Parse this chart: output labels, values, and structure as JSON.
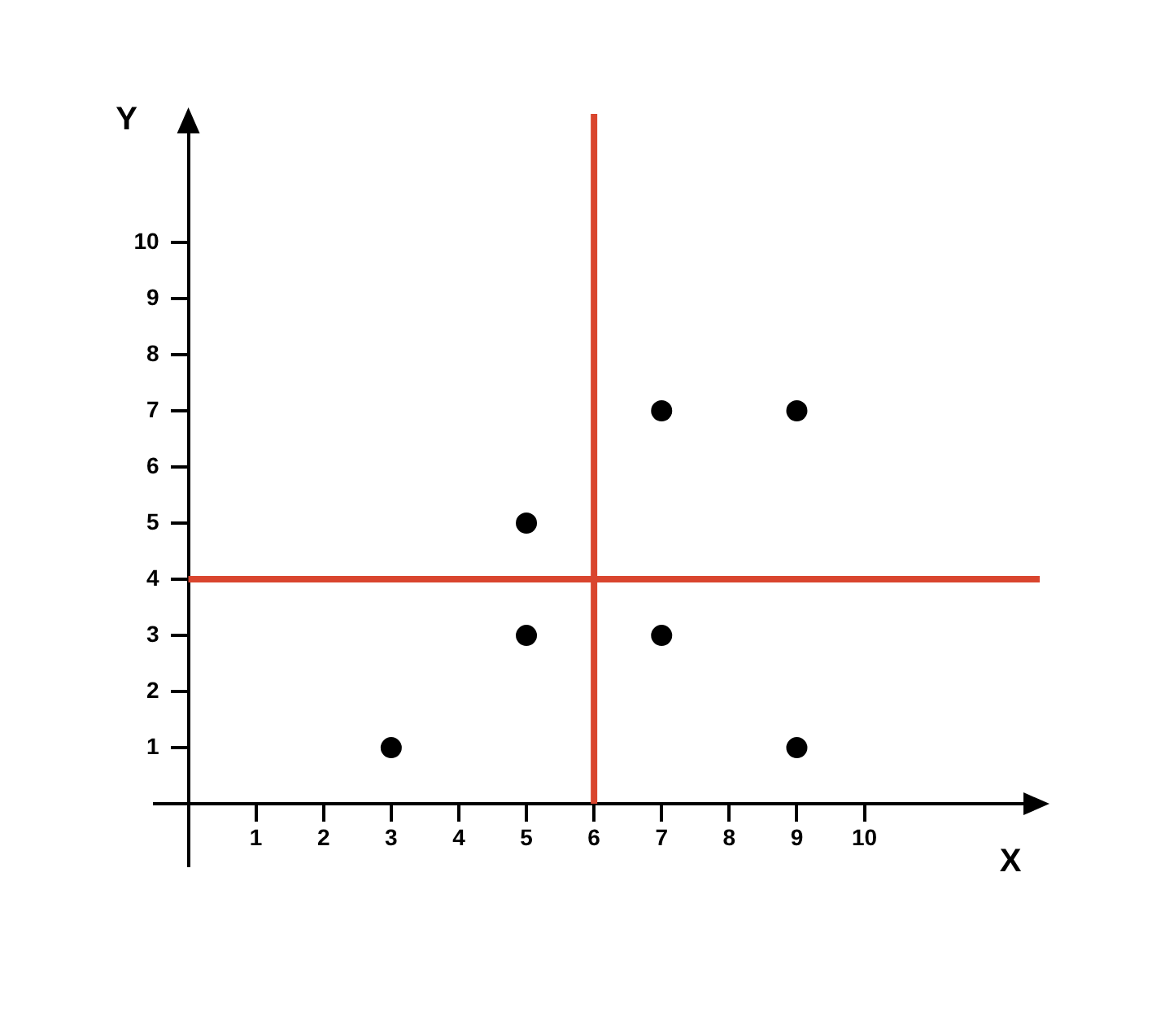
{
  "chart_data": {
    "type": "scatter",
    "x": [
      3,
      5,
      5,
      7,
      7,
      9,
      9
    ],
    "values": [
      1,
      3,
      5,
      3,
      7,
      7,
      1
    ],
    "color": "#000000",
    "xlabel": "X",
    "ylabel": "Y",
    "xlim": [
      -0.5,
      12.4
    ],
    "ylim": [
      -1.1,
      12
    ],
    "xticks": [
      1,
      2,
      3,
      4,
      5,
      6,
      7,
      8,
      9,
      10
    ],
    "yticks": [
      1,
      2,
      3,
      4,
      5,
      6,
      7,
      8,
      9,
      10
    ],
    "ref_lines": [
      {
        "axis": "x",
        "value": 6,
        "color": "#d9452e"
      },
      {
        "axis": "y",
        "value": 4,
        "color": "#d9452e"
      }
    ],
    "grid": false,
    "legend": false,
    "marker": "circle"
  }
}
